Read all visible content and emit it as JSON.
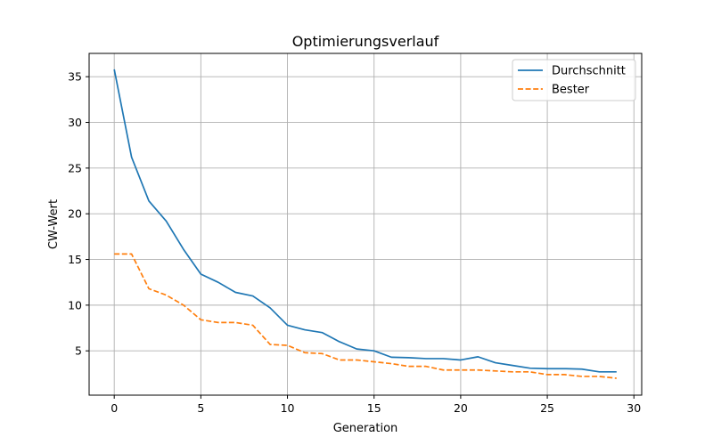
{
  "chart_data": {
    "type": "line",
    "title": "Optimierungsverlauf",
    "xlabel": "Generation",
    "ylabel": "CW-Wert",
    "xlim": [
      -1.45,
      30.45
    ],
    "ylim": [
      0.15,
      37.55
    ],
    "xticks": [
      0,
      5,
      10,
      15,
      20,
      25,
      30
    ],
    "yticks": [
      5,
      10,
      15,
      20,
      25,
      30,
      35
    ],
    "grid": true,
    "legend_position": "top-right",
    "x": [
      0,
      1,
      2,
      3,
      4,
      5,
      6,
      7,
      8,
      9,
      10,
      11,
      12,
      13,
      14,
      15,
      16,
      17,
      18,
      19,
      20,
      21,
      22,
      23,
      24,
      25,
      26,
      27,
      28,
      29
    ],
    "series": [
      {
        "name": "Durchschnitt",
        "color": "#1f77b4",
        "style": "solid",
        "values": [
          35.8,
          26.2,
          21.4,
          19.2,
          16.1,
          13.4,
          12.5,
          11.4,
          11.0,
          9.7,
          7.8,
          7.3,
          7.0,
          6.0,
          5.2,
          5.0,
          4.3,
          4.25,
          4.15,
          4.15,
          4.0,
          4.35,
          3.7,
          3.4,
          3.1,
          3.05,
          3.05,
          3.0,
          2.7,
          2.7
        ]
      },
      {
        "name": "Bester",
        "color": "#ff7f0e",
        "style": "dashed",
        "values": [
          15.6,
          15.6,
          11.8,
          11.1,
          10.0,
          8.4,
          8.1,
          8.1,
          7.8,
          5.7,
          5.6,
          4.8,
          4.7,
          4.0,
          4.0,
          3.8,
          3.6,
          3.3,
          3.3,
          2.9,
          2.9,
          2.9,
          2.8,
          2.7,
          2.7,
          2.4,
          2.4,
          2.2,
          2.2,
          2.0
        ]
      }
    ]
  }
}
